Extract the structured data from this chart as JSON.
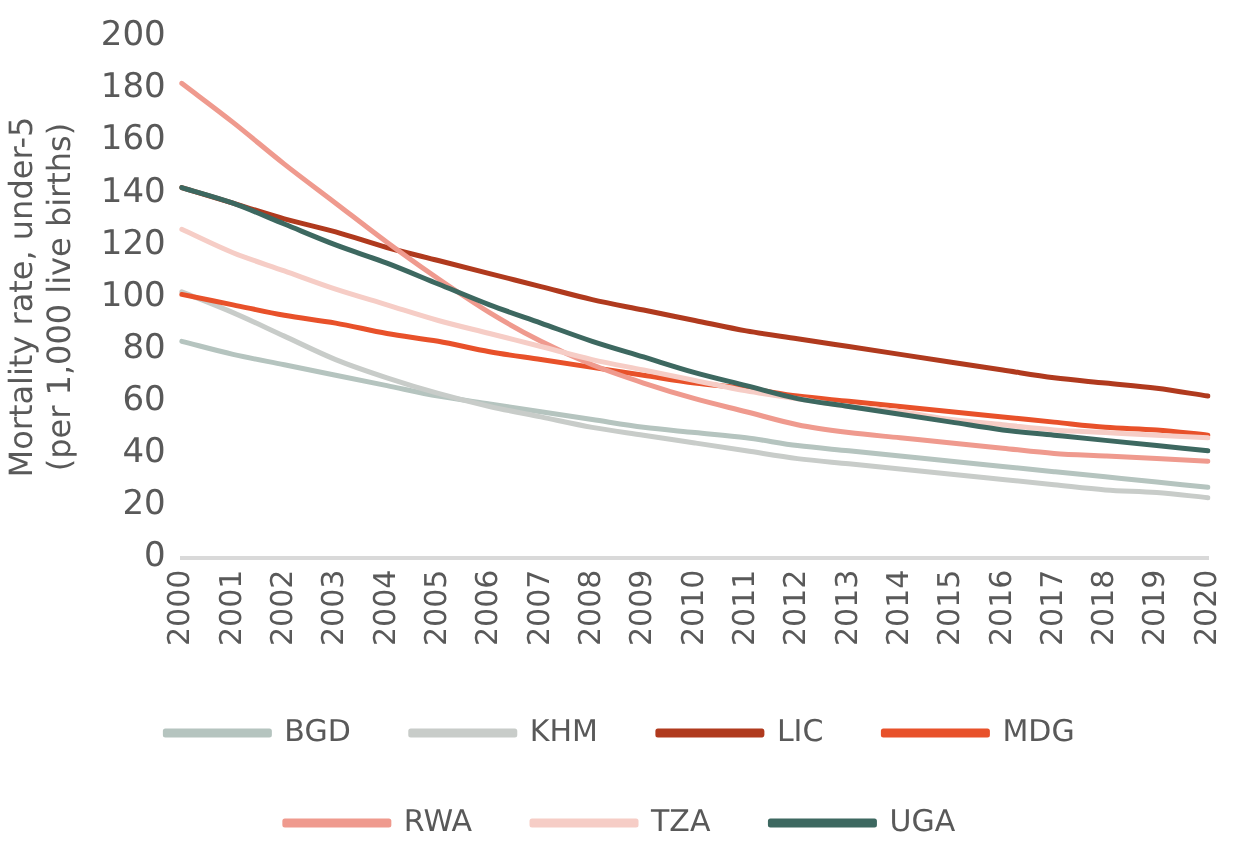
{
  "chart_data": {
    "type": "line",
    "ylabel": "Mortality rate, under-5\n(per 1,000 live births)",
    "categories": [
      "2000",
      "2001",
      "2002",
      "2003",
      "2004",
      "2005",
      "2006",
      "2007",
      "2008",
      "2009",
      "2010",
      "2011",
      "2012",
      "2013",
      "2014",
      "2015",
      "2016",
      "2017",
      "2018",
      "2019",
      "2020"
    ],
    "ylim": [
      0,
      200
    ],
    "yticks": [
      0,
      20,
      40,
      60,
      80,
      100,
      120,
      140,
      160,
      180,
      200
    ],
    "grid": false,
    "legend": "bottom",
    "marker": "none",
    "line_style": "solid",
    "series": [
      {
        "name": "BGD",
        "color": "#b5c4bf",
        "values": [
          83,
          78,
          74,
          70,
          66,
          62,
          59,
          56,
          53,
          50,
          48,
          46,
          43,
          41,
          39,
          37,
          35,
          33,
          31,
          29,
          27
        ]
      },
      {
        "name": "KHM",
        "color": "#c8ccc9",
        "values": [
          102,
          94,
          85,
          76,
          69,
          63,
          58,
          54,
          50,
          47,
          44,
          41,
          38,
          36,
          34,
          32,
          30,
          28,
          26,
          25,
          23
        ]
      },
      {
        "name": "LIC",
        "color": "#b03a1e",
        "values": [
          142,
          136,
          130,
          125,
          119,
          114,
          109,
          104,
          99,
          95,
          91,
          87,
          84,
          81,
          78,
          75,
          72,
          69,
          67,
          65,
          62
        ]
      },
      {
        "name": "MDG",
        "color": "#e8512a",
        "values": [
          101,
          97,
          93,
          90,
          86,
          83,
          79,
          76,
          73,
          70,
          67,
          65,
          62,
          60,
          58,
          56,
          54,
          52,
          50,
          49,
          47
        ]
      },
      {
        "name": "RWA",
        "color": "#ef9a8e",
        "values": [
          182,
          167,
          151,
          136,
          121,
          107,
          94,
          83,
          74,
          67,
          61,
          56,
          51,
          48,
          46,
          44,
          42,
          40,
          39,
          38,
          37
        ]
      },
      {
        "name": "TZA",
        "color": "#f6cdc6",
        "values": [
          126,
          117,
          110,
          103,
          97,
          91,
          86,
          81,
          76,
          72,
          68,
          64,
          61,
          58,
          56,
          53,
          51,
          49,
          48,
          47,
          46
        ]
      },
      {
        "name": "UGA",
        "color": "#3d6860",
        "values": [
          142,
          136,
          128,
          120,
          113,
          105,
          97,
          90,
          83,
          77,
          71,
          66,
          61,
          58,
          55,
          52,
          49,
          47,
          45,
          43,
          41
        ]
      }
    ]
  }
}
